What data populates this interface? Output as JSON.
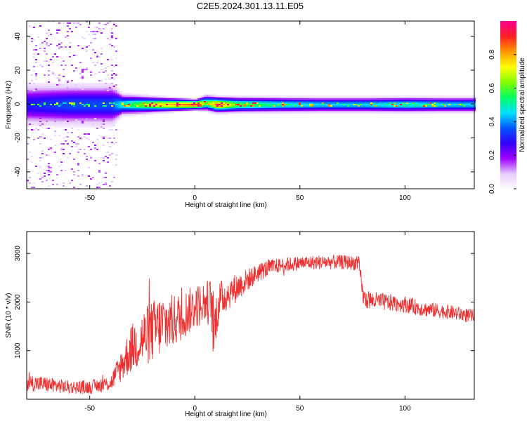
{
  "title": "C2E5.2024.301.13.11.E05",
  "chart_data": [
    {
      "type": "heatmap",
      "xlabel": "Height of straight line (km)",
      "ylabel": "Frequency (Hz)",
      "xlim": [
        -80,
        133
      ],
      "ylim": [
        -50,
        49
      ],
      "xticks": [
        -50,
        0,
        50,
        100
      ],
      "yticks": [
        -40,
        -20,
        0,
        20,
        40
      ],
      "colorbar": {
        "label": "Normalized spectral amplitude",
        "range": [
          0,
          1
        ],
        "ticks": [
          "0.0",
          "0.2",
          "0.4",
          "0.6",
          "0.8"
        ],
        "colormap": [
          "#ffffff",
          "#e6ccff",
          "#a000ff",
          "#3300ff",
          "#0055ff",
          "#00e0ff",
          "#00ff60",
          "#80ff00",
          "#ffff00",
          "#ff9900",
          "#ff2020",
          "#ff0090"
        ]
      },
      "band_profile": {
        "x": [
          -80,
          -60,
          -40,
          -35,
          -20,
          0,
          5,
          10,
          20,
          40,
          60,
          80,
          100,
          120,
          133
        ],
        "center_hz": [
          0,
          0,
          0,
          0,
          0,
          0,
          1,
          0,
          0,
          0,
          0,
          0,
          0,
          0,
          0
        ],
        "half_width_hz": [
          8,
          8,
          8,
          4,
          3,
          2,
          3,
          3,
          3,
          3,
          3,
          3,
          3,
          3,
          3
        ],
        "peak_amplitude": [
          0.3,
          0.35,
          0.35,
          0.5,
          0.7,
          0.9,
          0.6,
          0.85,
          0.6,
          0.5,
          0.45,
          0.45,
          0.5,
          0.45,
          0.45
        ]
      },
      "noise_region_x": [
        -80,
        -37
      ]
    },
    {
      "type": "line",
      "xlabel": "Height of straight line (km)",
      "ylabel": "SNR (10 * v/v)",
      "xlim": [
        -80,
        133
      ],
      "ylim": [
        0,
        3450
      ],
      "xticks": [
        -50,
        0,
        50,
        100
      ],
      "yticks": [
        1000,
        2000,
        3000
      ],
      "series": [
        {
          "color": "#ee3030",
          "x": [
            -80,
            -70,
            -60,
            -50,
            -40,
            -35,
            -30,
            -25,
            -20,
            -15,
            -10,
            -5,
            0,
            5,
            8,
            9,
            10,
            12,
            15,
            20,
            25,
            30,
            35,
            40,
            50,
            60,
            70,
            78,
            80,
            81,
            90,
            100,
            110,
            120,
            133
          ],
          "values": [
            350,
            300,
            250,
            250,
            330,
            700,
            1050,
            1250,
            1400,
            1550,
            1600,
            1750,
            1900,
            2000,
            2000,
            1200,
            1700,
            2050,
            2150,
            2300,
            2450,
            2600,
            2700,
            2750,
            2800,
            2820,
            2820,
            2800,
            2150,
            2050,
            2000,
            1950,
            1850,
            1800,
            1700
          ],
          "noise_amplitude": [
            180,
            160,
            140,
            140,
            160,
            350,
            500,
            600,
            650,
            650,
            550,
            500,
            450,
            450,
            500,
            700,
            500,
            400,
            350,
            300,
            230,
            200,
            180,
            150,
            150,
            150,
            150,
            150,
            200,
            200,
            180,
            170,
            160,
            150,
            150
          ]
        }
      ]
    }
  ]
}
